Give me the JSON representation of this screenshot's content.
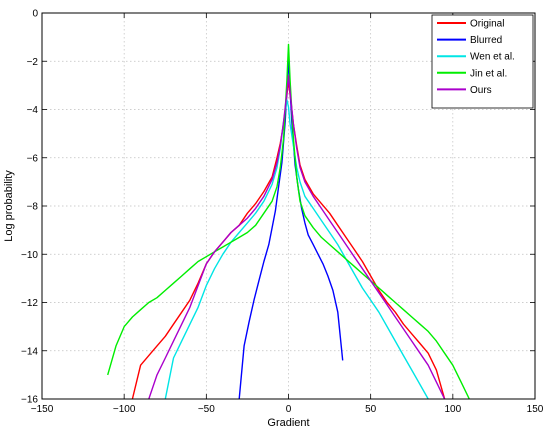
{
  "chart_data": {
    "type": "line",
    "title": "",
    "xlabel": "Gradient",
    "ylabel": "Log probability",
    "xlim": [
      -150,
      150
    ],
    "ylim": [
      -16,
      0
    ],
    "xticks": [
      -150,
      -100,
      -50,
      0,
      50,
      100,
      150
    ],
    "yticks": [
      0,
      -2,
      -4,
      -6,
      -8,
      -10,
      -12,
      -14,
      -16
    ],
    "grid": true,
    "legend_position": "top-right",
    "series": [
      {
        "name": "Original",
        "color": "#ff0000",
        "x": [
          -95,
          -90,
          -85,
          -80,
          -75,
          -70,
          -65,
          -60,
          -55,
          -50,
          -45,
          -40,
          -35,
          -30,
          -25,
          -20,
          -15,
          -10,
          -7,
          -5,
          -3,
          -1,
          0,
          1,
          3,
          5,
          7,
          10,
          15,
          20,
          25,
          30,
          35,
          40,
          45,
          50,
          55,
          60,
          65,
          70,
          75,
          80,
          85,
          90,
          95
        ],
        "y": [
          -16,
          -14.6,
          -14.2,
          -13.8,
          -13.4,
          -12.9,
          -12.4,
          -11.9,
          -11.2,
          -10.4,
          -9.9,
          -9.5,
          -9.1,
          -8.8,
          -8.3,
          -7.9,
          -7.4,
          -6.8,
          -6.0,
          -5.4,
          -4.6,
          -3.4,
          -2.8,
          -3.4,
          -4.6,
          -5.5,
          -6.3,
          -6.9,
          -7.5,
          -7.9,
          -8.3,
          -8.8,
          -9.3,
          -9.8,
          -10.3,
          -10.9,
          -11.5,
          -12.0,
          -12.4,
          -12.9,
          -13.3,
          -13.7,
          -14.1,
          -14.8,
          -16
        ]
      },
      {
        "name": "Blurred",
        "color": "#0000ff",
        "x": [
          -30,
          -27,
          -24,
          -21,
          -18,
          -15,
          -12,
          -10,
          -8,
          -6,
          -4,
          -2,
          0,
          2,
          4,
          6,
          8,
          10,
          12,
          15,
          18,
          21,
          24,
          27,
          30,
          33
        ],
        "y": [
          -16,
          -13.8,
          -12.8,
          -11.9,
          -11.1,
          -10.3,
          -9.6,
          -8.9,
          -8.2,
          -7.2,
          -6.2,
          -4.5,
          -1.9,
          -4.5,
          -6.3,
          -7.3,
          -8.1,
          -8.7,
          -9.2,
          -9.6,
          -10.0,
          -10.4,
          -10.9,
          -11.5,
          -12.4,
          -14.4
        ]
      },
      {
        "name": "Wen et al.",
        "color": "#00e5e5",
        "x": [
          -75,
          -70,
          -65,
          -60,
          -55,
          -50,
          -45,
          -40,
          -35,
          -30,
          -25,
          -20,
          -15,
          -10,
          -7,
          -5,
          -3,
          -1,
          0,
          1,
          3,
          5,
          7,
          10,
          15,
          20,
          25,
          30,
          35,
          40,
          45,
          50,
          55,
          60,
          65,
          70,
          75,
          80,
          85
        ],
        "y": [
          -16,
          -14.3,
          -13.6,
          -12.9,
          -12.2,
          -11.3,
          -10.6,
          -10.0,
          -9.5,
          -9.1,
          -8.7,
          -8.3,
          -7.8,
          -7.1,
          -6.4,
          -5.6,
          -4.5,
          -3.6,
          -3.9,
          -4.6,
          -5.5,
          -6.4,
          -7.0,
          -7.6,
          -8.1,
          -8.6,
          -9.1,
          -9.6,
          -10.2,
          -10.8,
          -11.4,
          -11.9,
          -12.4,
          -13.0,
          -13.6,
          -14.2,
          -14.8,
          -15.4,
          -16
        ]
      },
      {
        "name": "Jin et al.",
        "color": "#00ee00",
        "x": [
          -110,
          -105,
          -100,
          -95,
          -90,
          -85,
          -80,
          -75,
          -70,
          -65,
          -60,
          -55,
          -50,
          -45,
          -40,
          -35,
          -30,
          -25,
          -20,
          -15,
          -10,
          -7,
          -5,
          -3,
          -1,
          0,
          1,
          3,
          5,
          7,
          10,
          15,
          20,
          25,
          30,
          35,
          40,
          45,
          50,
          55,
          60,
          65,
          70,
          75,
          80,
          85,
          90,
          95,
          100,
          105,
          110
        ],
        "y": [
          -15.0,
          -13.8,
          -13.0,
          -12.6,
          -12.3,
          -12.0,
          -11.8,
          -11.5,
          -11.2,
          -10.9,
          -10.6,
          -10.3,
          -10.1,
          -9.9,
          -9.7,
          -9.5,
          -9.3,
          -9.1,
          -8.8,
          -8.3,
          -7.8,
          -7.2,
          -6.4,
          -5.2,
          -2.8,
          -1.3,
          -2.8,
          -5.2,
          -6.8,
          -7.8,
          -8.4,
          -8.9,
          -9.3,
          -9.6,
          -9.9,
          -10.2,
          -10.5,
          -10.8,
          -11.1,
          -11.4,
          -11.7,
          -12.0,
          -12.3,
          -12.6,
          -12.9,
          -13.2,
          -13.6,
          -14.1,
          -14.6,
          -15.3,
          -16
        ]
      },
      {
        "name": "Ours",
        "color": "#aa00cc",
        "x": [
          -85,
          -80,
          -75,
          -70,
          -65,
          -60,
          -55,
          -50,
          -45,
          -40,
          -35,
          -30,
          -25,
          -20,
          -15,
          -10,
          -7,
          -5,
          -3,
          -1,
          0,
          1,
          3,
          5,
          7,
          10,
          15,
          20,
          25,
          30,
          35,
          40,
          45,
          50,
          55,
          60,
          65,
          70,
          75,
          80,
          85,
          90,
          95
        ],
        "y": [
          -16,
          -15.0,
          -14.3,
          -13.6,
          -12.9,
          -12.2,
          -11.3,
          -10.4,
          -9.9,
          -9.5,
          -9.1,
          -8.8,
          -8.5,
          -8.1,
          -7.6,
          -6.9,
          -6.2,
          -5.5,
          -4.5,
          -3.3,
          -2.6,
          -3.3,
          -4.6,
          -5.6,
          -6.4,
          -7.0,
          -7.6,
          -8.1,
          -8.6,
          -9.1,
          -9.6,
          -10.1,
          -10.6,
          -11.1,
          -11.6,
          -12.1,
          -12.6,
          -13.1,
          -13.6,
          -14.1,
          -14.6,
          -15.3,
          -16
        ]
      }
    ]
  }
}
